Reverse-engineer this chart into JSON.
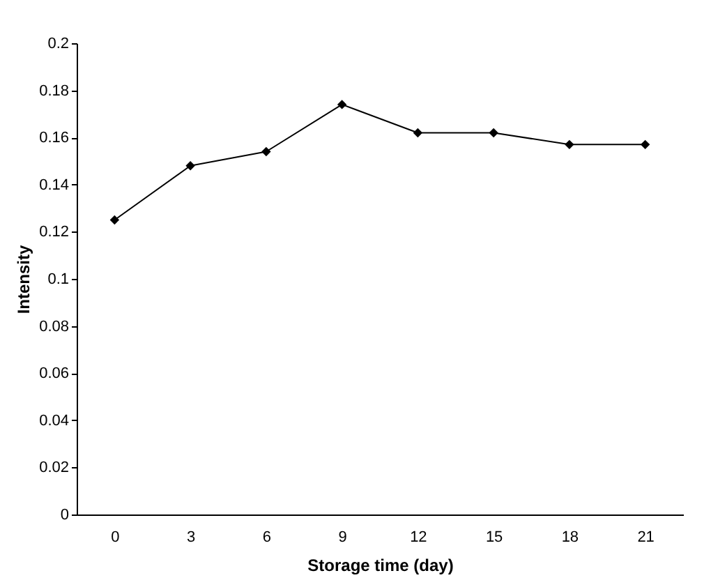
{
  "chart_data": {
    "type": "line",
    "xlabel": "Storage time (day)",
    "ylabel": "Intensity",
    "categories": [
      "0",
      "3",
      "6",
      "9",
      "12",
      "15",
      "18",
      "21"
    ],
    "series": [
      {
        "color": "#000000",
        "values": [
          0.125,
          0.148,
          0.154,
          0.174,
          0.162,
          0.162,
          0.157,
          0.157
        ]
      }
    ],
    "ylim": [
      0,
      0.2
    ],
    "yticks": [
      0,
      0.02,
      0.04,
      0.06,
      0.08,
      0.1,
      0.12,
      0.14,
      0.16,
      0.18,
      0.2
    ],
    "grid": false,
    "marker": "diamond",
    "line_style": "solid"
  }
}
